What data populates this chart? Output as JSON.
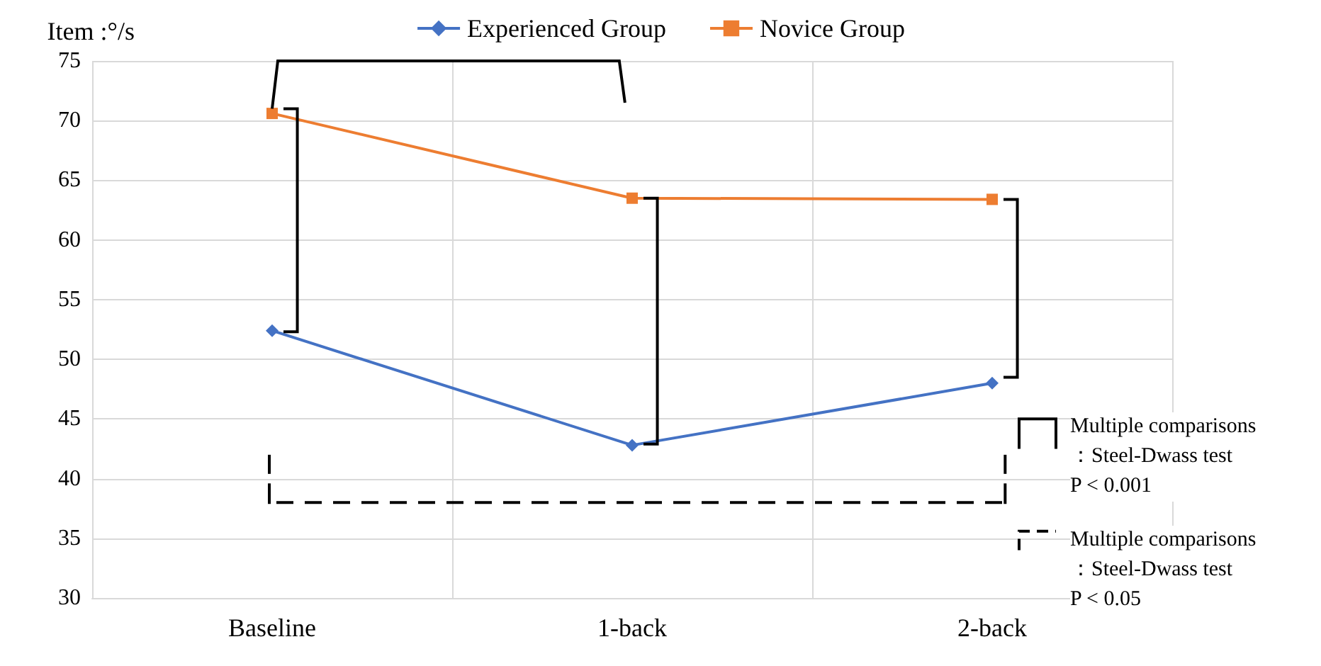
{
  "chart_data": {
    "type": "line",
    "ylabel": "Item :°/s",
    "categories": [
      "Baseline",
      "1-back",
      "2-back"
    ],
    "series": [
      {
        "name": "Experienced Group",
        "color": "#4472c4",
        "marker": "diamond",
        "values": [
          52.4,
          42.8,
          48.0
        ]
      },
      {
        "name": "Novice Group",
        "color": "#ed7d31",
        "marker": "square",
        "values": [
          70.6,
          63.5,
          63.4
        ]
      }
    ],
    "ylim": [
      30,
      75
    ],
    "yticks": [
      30,
      35,
      40,
      45,
      50,
      55,
      60,
      65,
      70,
      75
    ],
    "grid": true,
    "legend": "top",
    "annotations": [
      "Multiple comparisons\n：Steel-Dwass test\nP < 0.001",
      "Multiple comparisons\n：Steel-Dwass test\nP < 0.05"
    ]
  }
}
